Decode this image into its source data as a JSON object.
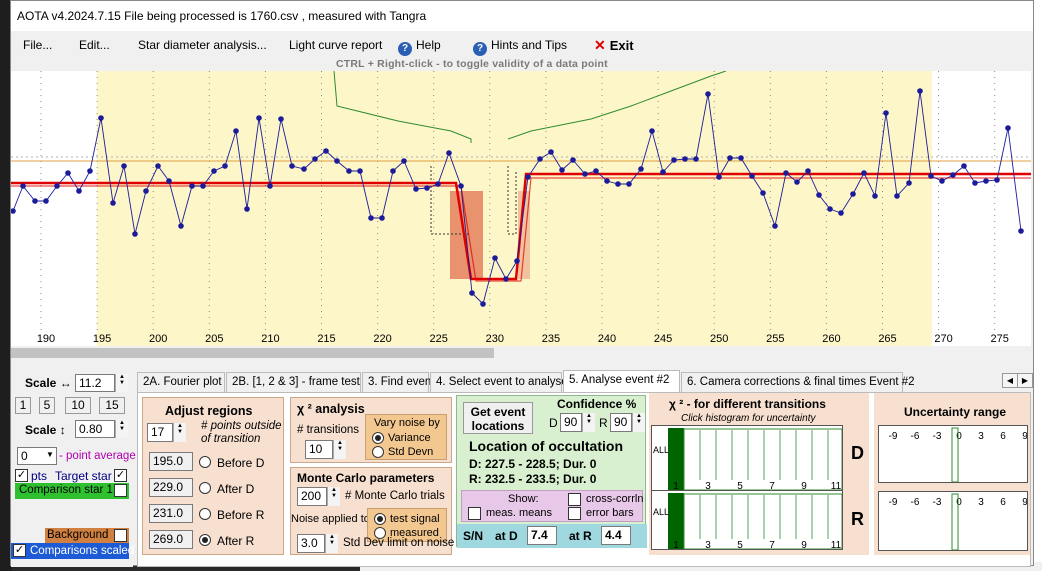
{
  "window": {
    "title": "AOTA v4.2024.7.15    File being processed is  1760.csv ,  measured with Tangra"
  },
  "menu": {
    "file": "File...",
    "edit": "Edit...",
    "star_diameter": "Star diameter analysis...",
    "light_curve_report": "Light curve report",
    "help": "Help",
    "hints": "Hints and Tips",
    "exit": "Exit"
  },
  "hint": "CTRL + Right-click   -   to toggle validity of a data point",
  "plot": {
    "x_ticks": [
      "190",
      "195",
      "200",
      "205",
      "210",
      "215",
      "220",
      "225",
      "230",
      "235",
      "240",
      "245",
      "250",
      "255",
      "260",
      "265",
      "270",
      "275"
    ],
    "background_color": "#fdf6c8",
    "model_color": "#e00000",
    "data_color": "#000080"
  },
  "tabs": [
    "2A. Fourier plot",
    "2B. [1, 2 & 3] - frame test",
    "3. Find events",
    "4. Select event to analyse",
    "5. Analyse event #2",
    "6. Camera corrections & final times Event #2"
  ],
  "left": {
    "scale_h_label": "Scale ↔",
    "scale_h_value": "11.2",
    "scale_buttons": [
      "1",
      "5",
      "10",
      "15"
    ],
    "scale_v_label": "Scale ↕",
    "scale_v_value": "0.80",
    "avg_value": "0",
    "avg_label": "- point average",
    "pts_label": "pts",
    "target_label": "Target star",
    "comparison_label": "Comparison star 1",
    "background_label": "Background",
    "comparisons_scaled_label": "Comparisons scaled"
  },
  "adjust": {
    "title": "Adjust regions",
    "points_outside": "17",
    "points_outside_label": "# points outside of transition",
    "regions": [
      {
        "value": "195.0",
        "label": "Before D",
        "selected": false
      },
      {
        "value": "229.0",
        "label": "After D",
        "selected": false
      },
      {
        "value": "231.0",
        "label": "Before R",
        "selected": false
      },
      {
        "value": "269.0",
        "label": "After R",
        "selected": true
      }
    ]
  },
  "chi": {
    "title": "χ ² analysis",
    "transitions_label": "# transitions",
    "transitions_value": "10",
    "vary_noise_label": "Vary noise by",
    "variance_label": "Variance",
    "stddevn_label": "Std Devn"
  },
  "monte": {
    "title": "Monte Carlo parameters",
    "trials_value": "200",
    "trials_label": "# Monte Carlo trials",
    "noise_applied_label": "Noise applied to",
    "test_signal_label": "test signal",
    "measured_label": "measured",
    "stddev_value": "3.0",
    "stddev_label": "Std Dev limit on noise"
  },
  "event": {
    "get_event_label": "Get event locations",
    "confidence_label": "Confidence %",
    "d_label": "D",
    "d_value": "90",
    "r_label": "R",
    "r_value": "90",
    "location_title": "Location of occultation",
    "d_location": "D: 227.5 - 228.5; Dur. 0",
    "r_location": "R: 232.5 - 233.5; Dur. 0",
    "show_label": "Show:",
    "cross_corrln_label": "cross-corrln",
    "meas_means_label": "meas. means",
    "error_bars_label": "error bars",
    "sn_label": "S/N",
    "at_d_label": "at D",
    "at_d_value": "7.4",
    "at_r_label": "at R",
    "at_r_value": "4.4"
  },
  "chi_transitions": {
    "title": "χ ² - for different transitions",
    "subtitle": "Click histogram for uncertainty",
    "all_label": "ALL",
    "ticks": [
      "1",
      "3",
      "5",
      "7",
      "9",
      "11"
    ],
    "d_label": "D",
    "r_label": "R"
  },
  "uncertainty": {
    "title": "Uncertainty range",
    "ticks": [
      "-9",
      "-6",
      "-3",
      "0",
      "3",
      "6",
      "9"
    ]
  }
}
